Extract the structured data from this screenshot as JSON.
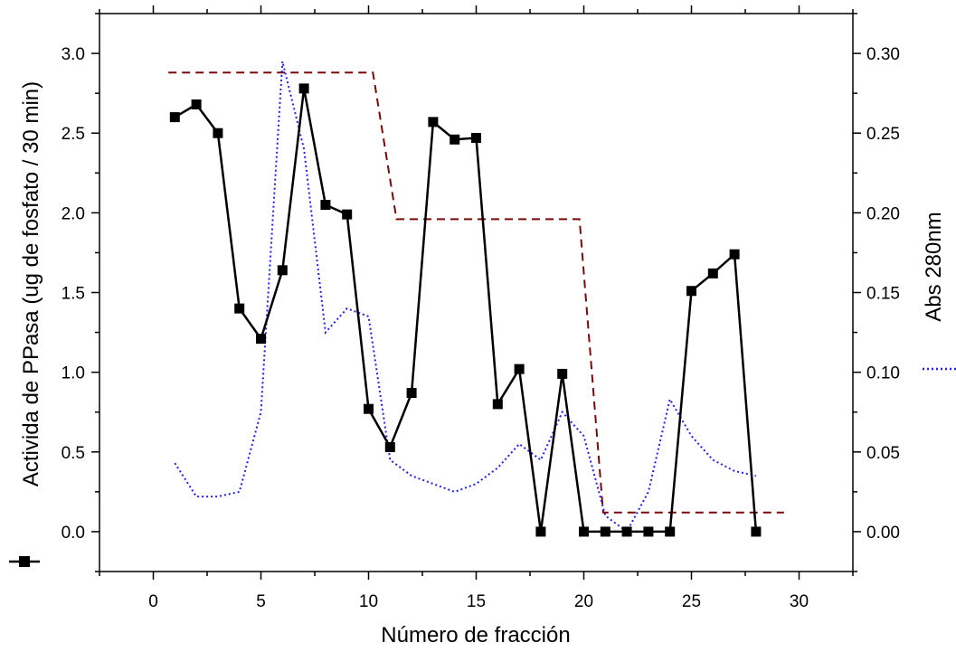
{
  "chart_data": {
    "type": "line",
    "xlabel": "Número de fracción",
    "ylabel_left": "Activida de PPasa (ug de fosfato / 30 min)",
    "ylabel_right": "Abs 280nm",
    "xlim": [
      -2.5,
      32.5
    ],
    "ylim_left": [
      -0.25,
      3.25
    ],
    "ylim_right": [
      -0.025,
      0.325
    ],
    "x_ticks": [
      0,
      5,
      10,
      15,
      20,
      25,
      30
    ],
    "x_tick_labels": [
      "0",
      "5",
      "10",
      "15",
      "20",
      "25",
      "30"
    ],
    "y_left_ticks": [
      0.0,
      0.5,
      1.0,
      1.5,
      2.0,
      2.5,
      3.0
    ],
    "y_left_tick_labels": [
      "0.0",
      "0.5",
      "1.0",
      "1.5",
      "2.0",
      "2.5",
      "3.0"
    ],
    "y_right_ticks": [
      0.0,
      0.05,
      0.1,
      0.15,
      0.2,
      0.25,
      0.3
    ],
    "y_right_tick_labels": [
      "0.00",
      "0.05",
      "0.10",
      "0.15",
      "0.20",
      "0.25",
      "0.30"
    ],
    "grid": false,
    "series": [
      {
        "axis": "left",
        "style": "solid-square-markers",
        "color": "#000000",
        "x": [
          1,
          2,
          3,
          4,
          5,
          6,
          7,
          8,
          9,
          10,
          11,
          12,
          13,
          14,
          15,
          16,
          17,
          18,
          19,
          20,
          21,
          22,
          23,
          24,
          25,
          26,
          27,
          28
        ],
        "y": [
          2.6,
          2.68,
          2.5,
          1.4,
          1.21,
          1.64,
          2.78,
          2.05,
          1.99,
          0.77,
          0.53,
          0.87,
          2.57,
          2.46,
          2.47,
          0.8,
          1.02,
          0.0,
          0.99,
          0.0,
          0.0,
          0.0,
          0.0,
          0.0,
          1.51,
          1.62,
          1.74,
          0.0
        ]
      },
      {
        "axis": "right",
        "style": "dotted",
        "color": "#1f1fff",
        "x": [
          1,
          2,
          3,
          4,
          5,
          6,
          7,
          8,
          9,
          10,
          11,
          12,
          13,
          14,
          15,
          16,
          17,
          18,
          19,
          20,
          21,
          22,
          23,
          24,
          25,
          26,
          27,
          28
        ],
        "y": [
          0.043,
          0.022,
          0.022,
          0.025,
          0.075,
          0.295,
          0.24,
          0.125,
          0.14,
          0.135,
          0.045,
          0.035,
          0.03,
          0.025,
          0.03,
          0.04,
          0.055,
          0.045,
          0.075,
          0.06,
          0.01,
          0.0,
          0.025,
          0.083,
          0.06,
          0.045,
          0.038,
          0.035
        ]
      },
      {
        "axis": "left",
        "style": "dashed",
        "color": "#7a0a0a",
        "x": [
          0.7,
          10.2,
          11.3,
          19.8,
          20.9,
          29.3
        ],
        "y": [
          2.88,
          2.88,
          1.96,
          1.96,
          0.12,
          0.12
        ]
      }
    ]
  }
}
